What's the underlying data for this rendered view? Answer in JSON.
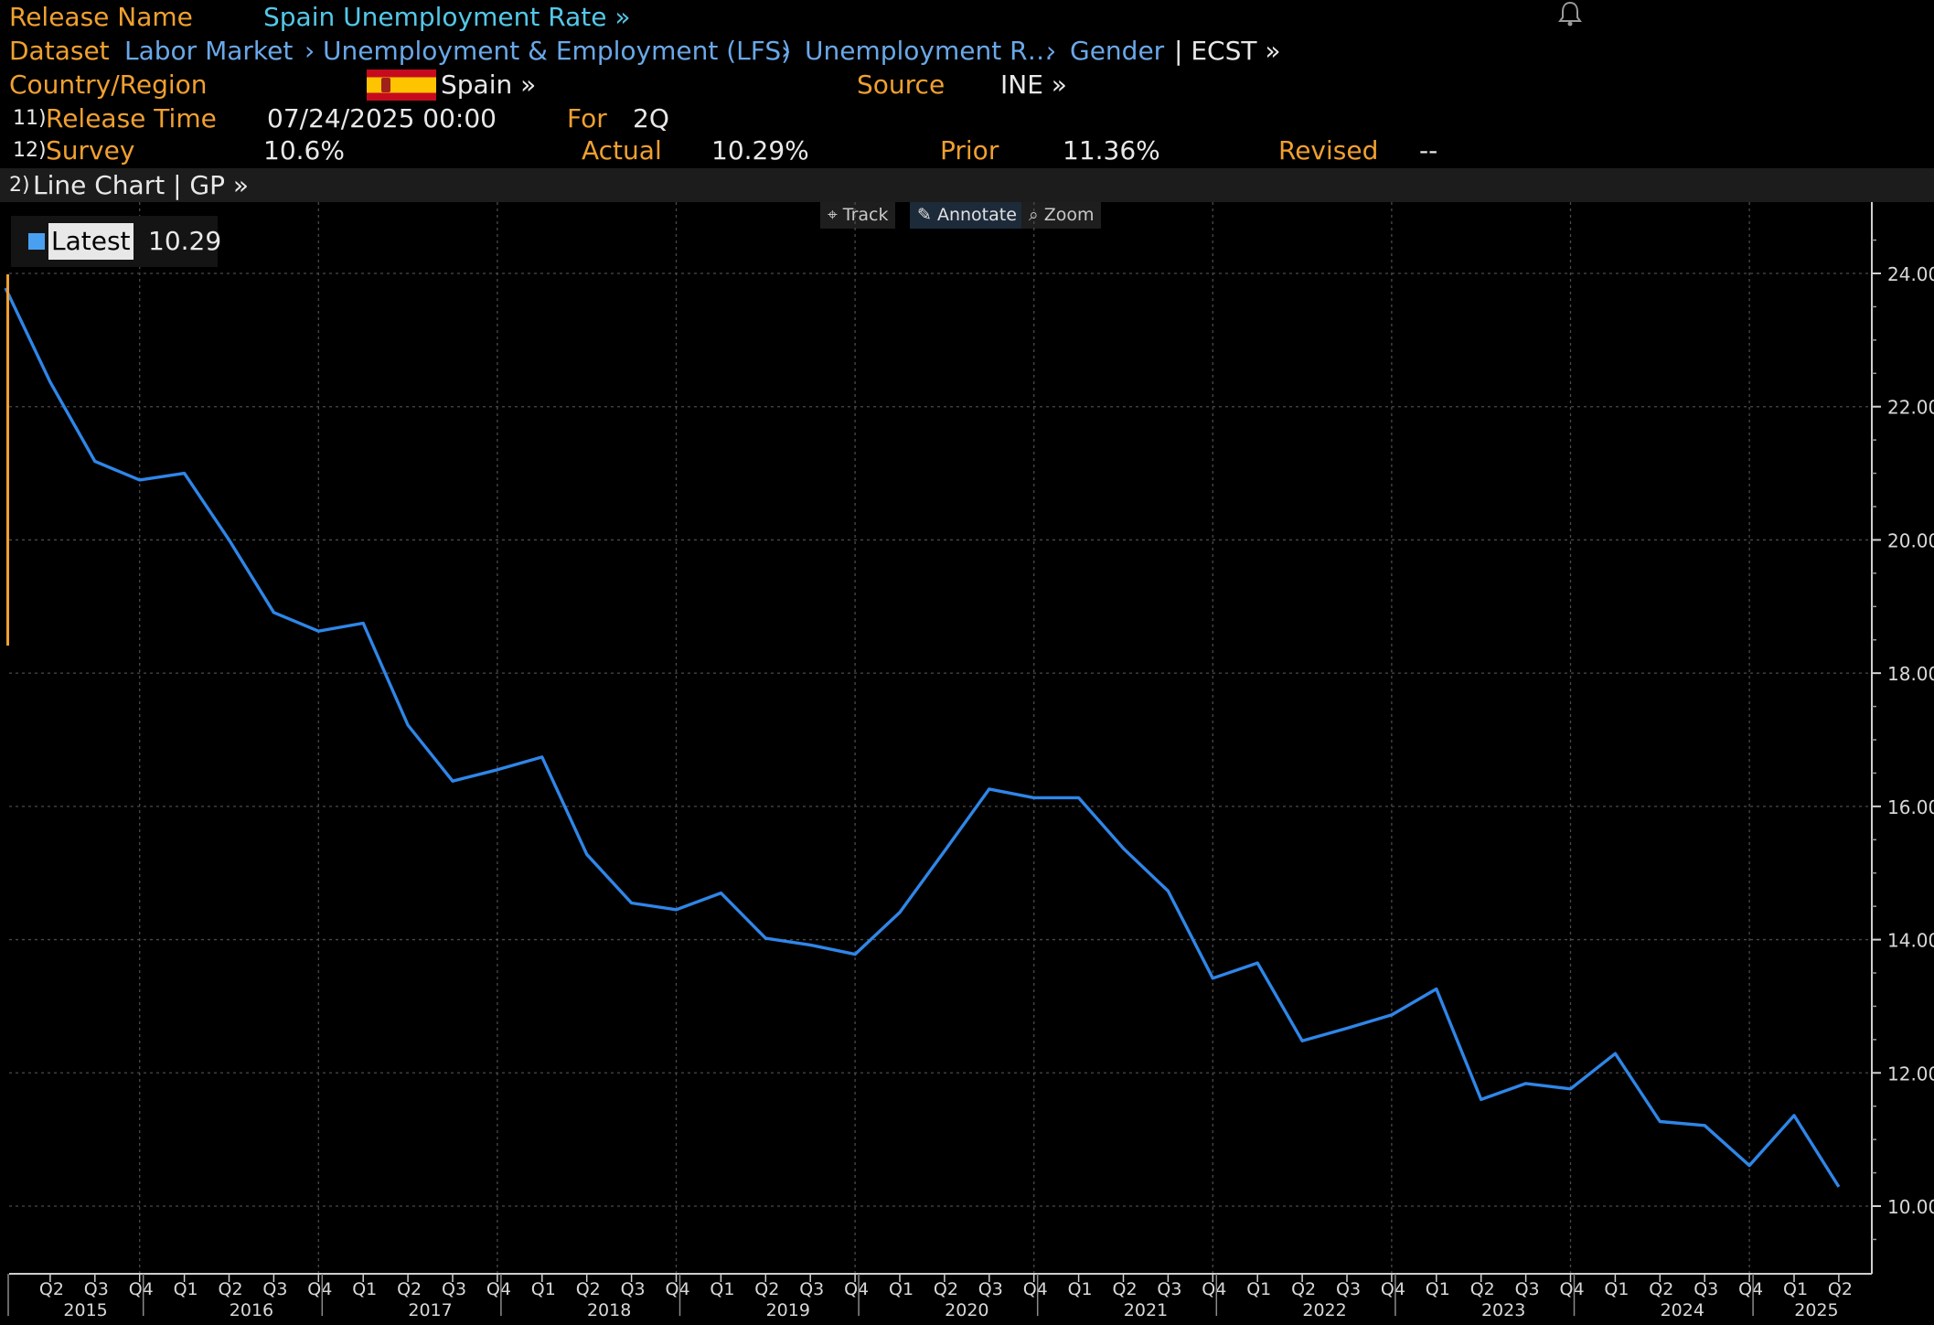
{
  "header": {
    "release_name_label": "Release Name",
    "release_name_value": "Spain Unemployment Rate »",
    "dataset_label": "Dataset",
    "dataset_path": [
      "Labor Market",
      "Unemployment & Employment (LFS)",
      "Unemployment R…",
      "Gender"
    ],
    "dataset_suffix": "| ECST »",
    "country_label": "Country/Region",
    "country_value": "Spain »",
    "source_label": "Source",
    "source_value": "INE »",
    "release_time_num": "11)",
    "release_time_label": "Release Time",
    "release_time_value": "07/24/2025 00:00",
    "for_label": "For",
    "for_value": "2Q",
    "survey_num": "12)",
    "survey_label": "Survey",
    "survey_value": "10.6%",
    "actual_label": "Actual",
    "actual_value": "10.29%",
    "prior_label": "Prior",
    "prior_value": "11.36%",
    "revised_label": "Revised",
    "revised_value": "--",
    "chart_num": "2)",
    "chart_menu": "Line Chart | GP »"
  },
  "toolbar": {
    "track": "Track",
    "annotate": "Annotate",
    "zoom": "Zoom"
  },
  "legend": {
    "label": "Latest",
    "value": "10.29"
  },
  "colors": {
    "line": "#2f86e8",
    "amber": "#f0a030",
    "link": "#6aa8e8",
    "grid": "#444444"
  },
  "chart_data": {
    "type": "line",
    "title": "",
    "x": [
      "2015 Q1",
      "2015 Q2",
      "2015 Q3",
      "2015 Q4",
      "2016 Q1",
      "2016 Q2",
      "2016 Q3",
      "2016 Q4",
      "2017 Q1",
      "2017 Q2",
      "2017 Q3",
      "2017 Q4",
      "2018 Q1",
      "2018 Q2",
      "2018 Q3",
      "2018 Q4",
      "2019 Q1",
      "2019 Q2",
      "2019 Q3",
      "2019 Q4",
      "2020 Q1",
      "2020 Q2",
      "2020 Q3",
      "2020 Q4",
      "2021 Q1",
      "2021 Q2",
      "2021 Q3",
      "2021 Q4",
      "2022 Q1",
      "2022 Q2",
      "2022 Q3",
      "2022 Q4",
      "2023 Q1",
      "2023 Q2",
      "2023 Q3",
      "2023 Q4",
      "2024 Q1",
      "2024 Q2",
      "2024 Q3",
      "2024 Q4",
      "2025 Q1",
      "2025 Q2"
    ],
    "series": [
      {
        "name": "Latest",
        "values": [
          23.78,
          22.37,
          21.18,
          20.9,
          21.0,
          20.0,
          18.91,
          18.63,
          18.75,
          17.22,
          16.38,
          16.55,
          16.74,
          15.28,
          14.55,
          14.45,
          14.7,
          14.02,
          13.92,
          13.78,
          14.41,
          15.33,
          16.26,
          16.13,
          16.13,
          15.37,
          14.73,
          13.42,
          13.65,
          12.48,
          12.67,
          12.87,
          13.26,
          11.6,
          11.84,
          11.76,
          12.29,
          11.27,
          11.21,
          10.61,
          11.36,
          10.29
        ]
      }
    ],
    "x_tick_labels": [
      "Q2",
      "Q3",
      "Q4",
      "Q1",
      "Q2",
      "Q3",
      "Q4",
      "Q1",
      "Q2",
      "Q3",
      "Q4",
      "Q1",
      "Q2",
      "Q3",
      "Q4",
      "Q1",
      "Q2",
      "Q3",
      "Q4",
      "Q1",
      "Q2",
      "Q3",
      "Q4",
      "Q1",
      "Q2",
      "Q3",
      "Q4",
      "Q1",
      "Q2",
      "Q3",
      "Q4",
      "Q1",
      "Q2",
      "Q3",
      "Q4",
      "Q1",
      "Q2",
      "Q3",
      "Q4",
      "Q1",
      "Q2"
    ],
    "year_labels": [
      "2015",
      "2016",
      "2017",
      "2018",
      "2019",
      "2020",
      "2021",
      "2022",
      "2023",
      "2024",
      "2025"
    ],
    "y_ticks": [
      "10.00",
      "12.00",
      "14.00",
      "16.00",
      "18.00",
      "20.00",
      "22.00",
      "24.00"
    ],
    "ylim": [
      9.0,
      25.0
    ],
    "grid": true,
    "legend_position": "top-left"
  }
}
